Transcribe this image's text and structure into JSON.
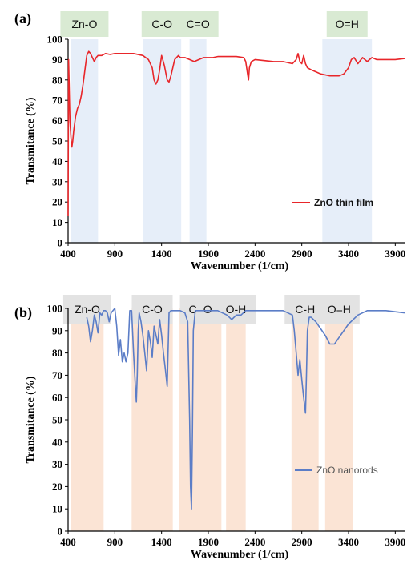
{
  "chart_data": [
    {
      "type": "line",
      "panel_label": "(a)",
      "xlabel": "Wavenumber (1/cm)",
      "ylabel": "Transmitance (%)",
      "xlim": [
        400,
        4000
      ],
      "ylim": [
        0,
        100
      ],
      "xticks": [
        400,
        900,
        1400,
        1900,
        2400,
        2900,
        3400,
        3900
      ],
      "yticks": [
        0,
        10,
        20,
        30,
        40,
        50,
        60,
        70,
        80,
        90,
        100
      ],
      "grid": false,
      "legend": "right",
      "band_style": {
        "fill": "#e6eef9",
        "label_bg": "#d9ead3"
      },
      "bands": [
        {
          "label": "Zn-O",
          "from": 430,
          "to": 720
        },
        {
          "label": "C-O",
          "from": 1200,
          "to": 1610
        },
        {
          "label": "C=O",
          "from": 1700,
          "to": 1880
        },
        {
          "label": "O=H",
          "from": 3120,
          "to": 3650
        }
      ],
      "series": [
        {
          "name": "ZnO thin film",
          "color": "#e8262a",
          "x": [
            400,
            405,
            410,
            420,
            430,
            440,
            450,
            460,
            480,
            500,
            520,
            540,
            560,
            580,
            600,
            620,
            640,
            660,
            680,
            700,
            720,
            760,
            800,
            850,
            900,
            1000,
            1100,
            1200,
            1260,
            1300,
            1320,
            1340,
            1360,
            1380,
            1400,
            1430,
            1460,
            1480,
            1500,
            1520,
            1540,
            1560,
            1580,
            1600,
            1650,
            1700,
            1750,
            1800,
            1850,
            1900,
            1950,
            2000,
            2100,
            2200,
            2280,
            2300,
            2320,
            2330,
            2340,
            2360,
            2400,
            2500,
            2600,
            2700,
            2800,
            2840,
            2860,
            2880,
            2900,
            2920,
            2940,
            2960,
            3000,
            3050,
            3100,
            3200,
            3300,
            3350,
            3400,
            3430,
            3460,
            3500,
            3550,
            3600,
            3650,
            3700,
            3800,
            3900,
            4000
          ],
          "y": [
            13,
            90,
            80,
            60,
            52,
            47,
            50,
            55,
            62,
            66,
            68,
            72,
            78,
            85,
            92,
            94,
            93,
            91,
            89,
            91,
            92,
            92,
            93,
            92.5,
            93,
            93,
            93,
            92,
            90,
            86,
            80,
            78,
            80,
            85,
            92,
            87,
            80,
            79,
            82,
            86,
            90,
            91,
            92,
            91,
            91,
            90,
            89,
            90,
            91,
            91,
            91,
            91.5,
            91.5,
            91.5,
            91,
            89,
            83,
            80,
            86,
            89,
            90,
            89.5,
            89,
            89,
            88,
            90,
            93,
            89,
            88,
            92,
            88,
            86,
            85,
            84,
            83,
            82,
            82,
            83,
            86,
            90,
            91,
            88,
            91,
            89,
            91,
            90,
            90,
            90,
            90.5
          ]
        }
      ]
    },
    {
      "type": "line",
      "panel_label": "(b)",
      "xlabel": "Wavenumber (1/cm)",
      "ylabel": "Transmitance (%)",
      "xlim": [
        400,
        4000
      ],
      "ylim": [
        0,
        100
      ],
      "xticks": [
        400,
        900,
        1400,
        1900,
        2400,
        2900,
        3400,
        3900
      ],
      "yticks": [
        0,
        10,
        20,
        30,
        40,
        50,
        60,
        70,
        80,
        90,
        100
      ],
      "grid": false,
      "legend": "right",
      "band_style": {
        "fill": "#fbe4d5",
        "label_bg": "#e3e3e3"
      },
      "bands": [
        {
          "label": "Zn-O",
          "from": 430,
          "to": 780
        },
        {
          "label": "C-O",
          "from": 1080,
          "to": 1520
        },
        {
          "label": "C=O",
          "from": 1590,
          "to": 2040
        },
        {
          "label": "O-H",
          "from": 2090,
          "to": 2300
        },
        {
          "label": "C-H",
          "from": 2790,
          "to": 3080
        },
        {
          "label": "O=H",
          "from": 3150,
          "to": 3450
        }
      ],
      "series": [
        {
          "name": "ZnO nanorods",
          "color": "#5b7dc7",
          "x": [
            600,
            620,
            640,
            660,
            680,
            700,
            720,
            740,
            760,
            780,
            800,
            820,
            840,
            860,
            880,
            900,
            920,
            940,
            960,
            980,
            1000,
            1020,
            1040,
            1060,
            1080,
            1100,
            1120,
            1130,
            1140,
            1150,
            1160,
            1180,
            1200,
            1220,
            1240,
            1260,
            1280,
            1300,
            1320,
            1340,
            1360,
            1380,
            1400,
            1420,
            1440,
            1460,
            1480,
            1500,
            1550,
            1600,
            1650,
            1680,
            1700,
            1710,
            1720,
            1730,
            1740,
            1760,
            1800,
            1900,
            2000,
            2100,
            2150,
            2200,
            2250,
            2300,
            2400,
            2500,
            2600,
            2700,
            2800,
            2820,
            2840,
            2860,
            2880,
            2900,
            2920,
            2940,
            2950,
            2960,
            2980,
            3000,
            3050,
            3100,
            3150,
            3200,
            3250,
            3300,
            3400,
            3500,
            3600,
            3700,
            3800,
            3900,
            4000
          ],
          "y": [
            96,
            92,
            85,
            90,
            97,
            94,
            89,
            98,
            97,
            99,
            99,
            98,
            94,
            98,
            99,
            100,
            92,
            79,
            86,
            76,
            80,
            76,
            80,
            99,
            99,
            80,
            65,
            58,
            70,
            90,
            98,
            94,
            88,
            80,
            72,
            90,
            85,
            78,
            92,
            88,
            84,
            95,
            88,
            80,
            73,
            65,
            98,
            99,
            99,
            99,
            98,
            94,
            50,
            20,
            10,
            45,
            90,
            99,
            99,
            99,
            99,
            97,
            95,
            97,
            97,
            99,
            99,
            99,
            99,
            99,
            97,
            90,
            80,
            70,
            77,
            68,
            60,
            53,
            70,
            90,
            96,
            96,
            94,
            91,
            88,
            84,
            84,
            87,
            93,
            97,
            99,
            99,
            99,
            98.5,
            98
          ]
        }
      ]
    }
  ]
}
